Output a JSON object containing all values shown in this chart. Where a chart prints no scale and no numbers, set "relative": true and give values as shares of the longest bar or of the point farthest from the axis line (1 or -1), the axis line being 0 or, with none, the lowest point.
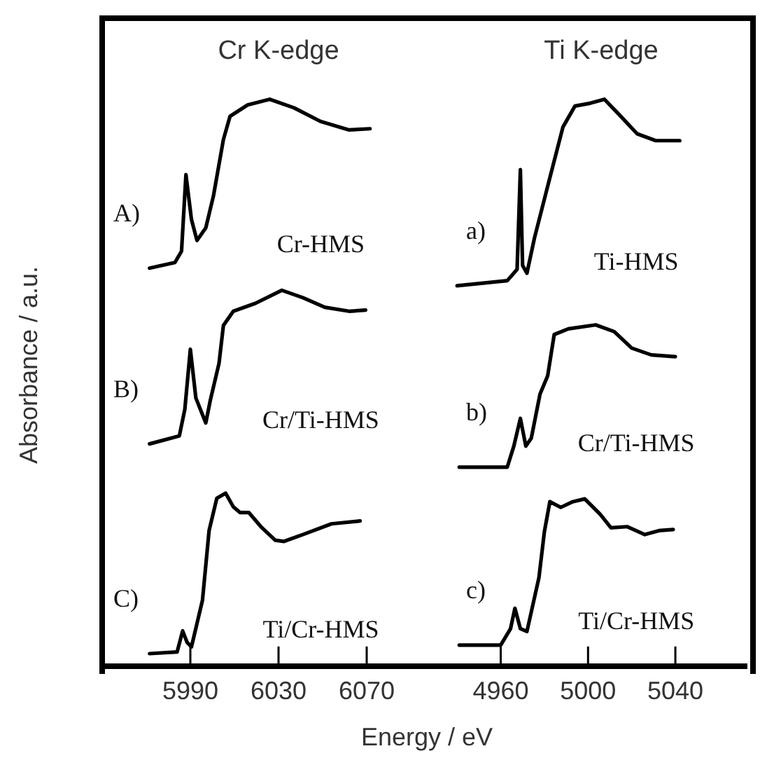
{
  "chart_data": [
    {
      "type": "line",
      "title": "Cr K-edge",
      "xlabel": "Energy  / eV",
      "ylabel": "Absorbance  / a.u.",
      "relative": true,
      "tick_labels": "x",
      "marker": "none",
      "xlim": [
        5950,
        6110
      ],
      "xticks": [
        5990,
        6030,
        6070
      ],
      "series": [
        {
          "color": "#000000",
          "x": [
            5971.5,
            5983,
            5986,
            5988,
            5990.5,
            5993,
            5997,
            6000.5,
            6005,
            6008,
            6016,
            6026,
            6037,
            6049,
            6062,
            6071.5
          ],
          "values": [
            0.702,
            0.712,
            0.732,
            0.867,
            0.788,
            0.751,
            0.773,
            0.83,
            0.929,
            0.97,
            0.99,
            1.0,
            0.985,
            0.961,
            0.946,
            0.948
          ]
        },
        {
          "color": "#000000",
          "x": [
            5971.5,
            5985,
            5987.5,
            5990,
            5992.5,
            5997,
            5999,
            6003,
            6005,
            6009.5,
            6019.5,
            6031.5,
            6041,
            6051,
            6062,
            6069.5
          ],
          "values": [
            0.392,
            0.406,
            0.453,
            0.559,
            0.473,
            0.429,
            0.468,
            0.534,
            0.601,
            0.626,
            0.64,
            0.663,
            0.65,
            0.633,
            0.626,
            0.628
          ]
        },
        {
          "color": "#000000",
          "x": [
            5971.5,
            5984,
            5986.5,
            5988.5,
            5990.5,
            5995.5,
            5998.5,
            6002,
            6006,
            6009.5,
            6012.5,
            6016.5,
            6022,
            6028.5,
            6032.5,
            6041,
            6054,
            6067
          ],
          "values": [
            0.022,
            0.025,
            0.062,
            0.042,
            0.034,
            0.116,
            0.239,
            0.296,
            0.305,
            0.281,
            0.271,
            0.271,
            0.246,
            0.222,
            0.22,
            0.232,
            0.251,
            0.256
          ]
        }
      ],
      "annotations": [
        "A)",
        "Cr-HMS",
        "B)",
        "Cr/Ti-HMS",
        "C)",
        "Ti/Cr-HMS"
      ]
    },
    {
      "type": "line",
      "title": "Ti K-edge",
      "relative": true,
      "tick_labels": "x",
      "marker": "none",
      "xlim": [
        4939,
        5073
      ],
      "xticks": [
        4960,
        5000,
        5040
      ],
      "series": [
        {
          "color": "#000000",
          "x": [
            4940,
            4963,
            4967.5,
            4969,
            4970,
            4972,
            4975.5,
            4982,
            4988.5,
            4994,
            5001,
            5007.5,
            5013.5,
            5022.5,
            5031,
            5042
          ],
          "values": [
            0.671,
            0.68,
            0.7,
            0.876,
            0.707,
            0.693,
            0.756,
            0.854,
            0.951,
            0.988,
            0.993,
            1.0,
            0.976,
            0.939,
            0.927,
            0.927
          ]
        },
        {
          "color": "#000000",
          "x": [
            4941,
            4963,
            4966,
            4969,
            4971.5,
            4974,
            4978,
            4981.5,
            4984.5,
            4991,
            5003.5,
            5012,
            5020,
            5029,
            5040
          ],
          "values": [
            0.351,
            0.351,
            0.388,
            0.437,
            0.388,
            0.402,
            0.48,
            0.512,
            0.585,
            0.595,
            0.602,
            0.59,
            0.561,
            0.549,
            0.546
          ]
        },
        {
          "color": "#000000",
          "x": [
            4941,
            4960,
            4964.5,
            4966.5,
            4969,
            4972,
            4977.5,
            4980,
            4982.5,
            4987.5,
            4993,
            4998.5,
            5005.5,
            5010.5,
            5018,
            5026,
            5032.5,
            5039
          ],
          "values": [
            0.037,
            0.037,
            0.066,
            0.102,
            0.066,
            0.061,
            0.156,
            0.237,
            0.29,
            0.28,
            0.29,
            0.295,
            0.268,
            0.244,
            0.246,
            0.232,
            0.239,
            0.241
          ]
        }
      ],
      "annotations": [
        "a)",
        "Ti-HMS",
        "b)",
        "Cr/Ti-HMS",
        "c)",
        "Ti/Cr-HMS"
      ]
    }
  ]
}
